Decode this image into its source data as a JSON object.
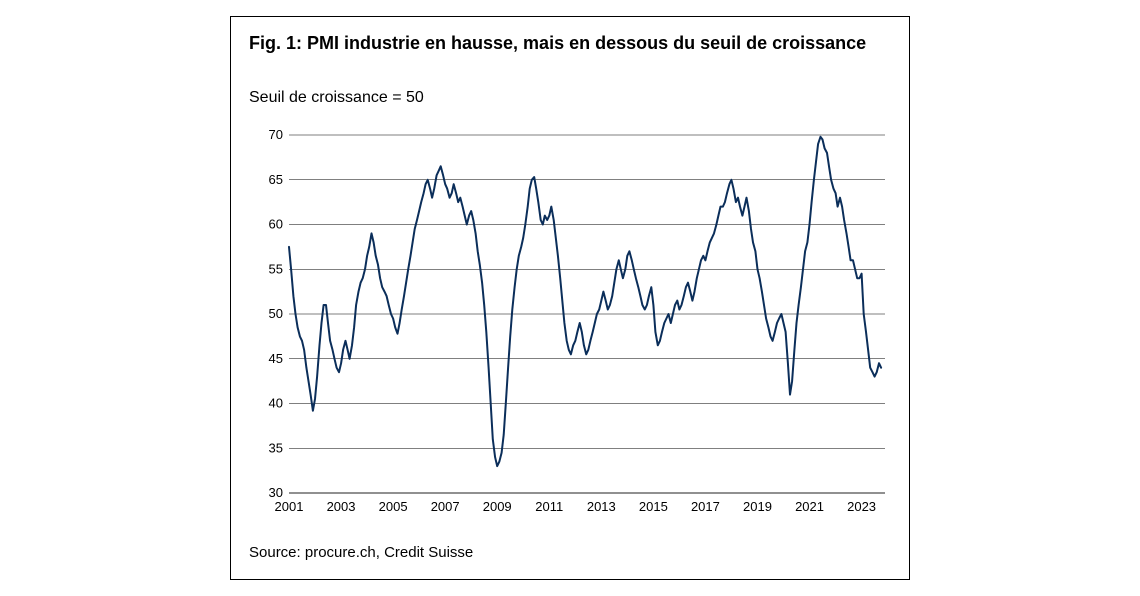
{
  "figure": {
    "title": "Fig. 1: PMI industrie en hausse, mais en dessous du seuil de croissance",
    "subtitle": "Seuil de croissance = 50",
    "source": "Source: procure.ch, Credit Suisse",
    "border_color": "#000000",
    "background": "#ffffff"
  },
  "chart": {
    "type": "line",
    "line_color": "#0b2e5a",
    "line_width": 2,
    "grid_color": "#000000",
    "grid_width": 0.6,
    "x": {
      "min": 2001,
      "max": 2023.9,
      "ticks": [
        2001,
        2003,
        2005,
        2007,
        2009,
        2011,
        2013,
        2015,
        2017,
        2019,
        2021,
        2023
      ]
    },
    "y": {
      "min": 30,
      "max": 70,
      "ticks": [
        30,
        35,
        40,
        45,
        50,
        55,
        60,
        65,
        70
      ]
    },
    "tick_font_size": 13,
    "series": {
      "name": "PMI industrie",
      "points": [
        [
          2001.0,
          57.5
        ],
        [
          2001.08,
          55.0
        ],
        [
          2001.17,
          52.0
        ],
        [
          2001.25,
          50.0
        ],
        [
          2001.33,
          48.5
        ],
        [
          2001.42,
          47.5
        ],
        [
          2001.5,
          47.0
        ],
        [
          2001.58,
          46.0
        ],
        [
          2001.67,
          44.0
        ],
        [
          2001.75,
          42.5
        ],
        [
          2001.83,
          41.0
        ],
        [
          2001.92,
          39.2
        ],
        [
          2002.0,
          40.5
        ],
        [
          2002.08,
          43.0
        ],
        [
          2002.17,
          46.5
        ],
        [
          2002.25,
          49.0
        ],
        [
          2002.33,
          51.0
        ],
        [
          2002.42,
          51.0
        ],
        [
          2002.5,
          49.0
        ],
        [
          2002.58,
          47.0
        ],
        [
          2002.67,
          46.0
        ],
        [
          2002.75,
          45.0
        ],
        [
          2002.83,
          44.0
        ],
        [
          2002.92,
          43.5
        ],
        [
          2003.0,
          44.5
        ],
        [
          2003.08,
          46.0
        ],
        [
          2003.17,
          47.0
        ],
        [
          2003.25,
          46.0
        ],
        [
          2003.33,
          45.0
        ],
        [
          2003.42,
          46.5
        ],
        [
          2003.5,
          48.5
        ],
        [
          2003.58,
          51.0
        ],
        [
          2003.67,
          52.5
        ],
        [
          2003.75,
          53.5
        ],
        [
          2003.83,
          54.0
        ],
        [
          2003.92,
          55.0
        ],
        [
          2004.0,
          56.5
        ],
        [
          2004.08,
          57.5
        ],
        [
          2004.17,
          59.0
        ],
        [
          2004.25,
          58.0
        ],
        [
          2004.33,
          56.5
        ],
        [
          2004.42,
          55.5
        ],
        [
          2004.5,
          54.0
        ],
        [
          2004.58,
          53.0
        ],
        [
          2004.67,
          52.5
        ],
        [
          2004.75,
          52.0
        ],
        [
          2004.83,
          51.0
        ],
        [
          2004.92,
          50.0
        ],
        [
          2005.0,
          49.5
        ],
        [
          2005.08,
          48.5
        ],
        [
          2005.17,
          47.8
        ],
        [
          2005.25,
          49.0
        ],
        [
          2005.33,
          50.5
        ],
        [
          2005.42,
          52.0
        ],
        [
          2005.5,
          53.5
        ],
        [
          2005.58,
          55.0
        ],
        [
          2005.67,
          56.5
        ],
        [
          2005.75,
          58.0
        ],
        [
          2005.83,
          59.5
        ],
        [
          2005.92,
          60.5
        ],
        [
          2006.0,
          61.5
        ],
        [
          2006.08,
          62.5
        ],
        [
          2006.17,
          63.5
        ],
        [
          2006.25,
          64.5
        ],
        [
          2006.33,
          65.0
        ],
        [
          2006.42,
          64.0
        ],
        [
          2006.5,
          63.0
        ],
        [
          2006.58,
          64.0
        ],
        [
          2006.67,
          65.5
        ],
        [
          2006.75,
          66.0
        ],
        [
          2006.83,
          66.5
        ],
        [
          2006.92,
          65.5
        ],
        [
          2007.0,
          64.5
        ],
        [
          2007.08,
          64.0
        ],
        [
          2007.17,
          63.0
        ],
        [
          2007.25,
          63.5
        ],
        [
          2007.33,
          64.5
        ],
        [
          2007.42,
          63.5
        ],
        [
          2007.5,
          62.5
        ],
        [
          2007.58,
          63.0
        ],
        [
          2007.67,
          62.0
        ],
        [
          2007.75,
          61.0
        ],
        [
          2007.83,
          60.0
        ],
        [
          2007.92,
          61.0
        ],
        [
          2008.0,
          61.5
        ],
        [
          2008.08,
          60.5
        ],
        [
          2008.17,
          59.0
        ],
        [
          2008.25,
          57.0
        ],
        [
          2008.33,
          55.5
        ],
        [
          2008.42,
          53.5
        ],
        [
          2008.5,
          51.0
        ],
        [
          2008.58,
          48.0
        ],
        [
          2008.67,
          44.0
        ],
        [
          2008.75,
          40.0
        ],
        [
          2008.83,
          36.0
        ],
        [
          2008.92,
          34.0
        ],
        [
          2009.0,
          33.0
        ],
        [
          2009.08,
          33.5
        ],
        [
          2009.17,
          34.5
        ],
        [
          2009.25,
          36.5
        ],
        [
          2009.33,
          40.0
        ],
        [
          2009.42,
          44.0
        ],
        [
          2009.5,
          47.5
        ],
        [
          2009.58,
          50.5
        ],
        [
          2009.67,
          53.0
        ],
        [
          2009.75,
          55.0
        ],
        [
          2009.83,
          56.5
        ],
        [
          2009.92,
          57.5
        ],
        [
          2010.0,
          58.5
        ],
        [
          2010.08,
          60.0
        ],
        [
          2010.17,
          62.0
        ],
        [
          2010.25,
          64.0
        ],
        [
          2010.33,
          65.0
        ],
        [
          2010.42,
          65.3
        ],
        [
          2010.5,
          64.0
        ],
        [
          2010.58,
          62.5
        ],
        [
          2010.67,
          60.5
        ],
        [
          2010.75,
          60.0
        ],
        [
          2010.83,
          61.0
        ],
        [
          2010.92,
          60.5
        ],
        [
          2011.0,
          61.0
        ],
        [
          2011.08,
          62.0
        ],
        [
          2011.17,
          60.5
        ],
        [
          2011.25,
          58.5
        ],
        [
          2011.33,
          56.5
        ],
        [
          2011.42,
          54.0
        ],
        [
          2011.5,
          51.5
        ],
        [
          2011.58,
          49.0
        ],
        [
          2011.67,
          47.0
        ],
        [
          2011.75,
          46.0
        ],
        [
          2011.83,
          45.5
        ],
        [
          2011.92,
          46.5
        ],
        [
          2012.0,
          47.0
        ],
        [
          2012.08,
          48.0
        ],
        [
          2012.17,
          49.0
        ],
        [
          2012.25,
          48.0
        ],
        [
          2012.33,
          46.5
        ],
        [
          2012.42,
          45.5
        ],
        [
          2012.5,
          46.0
        ],
        [
          2012.58,
          47.0
        ],
        [
          2012.67,
          48.0
        ],
        [
          2012.75,
          49.0
        ],
        [
          2012.83,
          50.0
        ],
        [
          2012.92,
          50.5
        ],
        [
          2013.0,
          51.5
        ],
        [
          2013.08,
          52.5
        ],
        [
          2013.17,
          51.5
        ],
        [
          2013.25,
          50.5
        ],
        [
          2013.33,
          51.0
        ],
        [
          2013.42,
          52.0
        ],
        [
          2013.5,
          53.5
        ],
        [
          2013.58,
          55.0
        ],
        [
          2013.67,
          56.0
        ],
        [
          2013.75,
          55.0
        ],
        [
          2013.83,
          54.0
        ],
        [
          2013.92,
          55.0
        ],
        [
          2014.0,
          56.5
        ],
        [
          2014.08,
          57.0
        ],
        [
          2014.17,
          56.0
        ],
        [
          2014.25,
          55.0
        ],
        [
          2014.33,
          54.0
        ],
        [
          2014.42,
          53.0
        ],
        [
          2014.5,
          52.0
        ],
        [
          2014.58,
          51.0
        ],
        [
          2014.67,
          50.5
        ],
        [
          2014.75,
          51.0
        ],
        [
          2014.83,
          52.0
        ],
        [
          2014.92,
          53.0
        ],
        [
          2015.0,
          51.0
        ],
        [
          2015.08,
          48.0
        ],
        [
          2015.17,
          46.5
        ],
        [
          2015.25,
          47.0
        ],
        [
          2015.33,
          48.0
        ],
        [
          2015.42,
          49.0
        ],
        [
          2015.5,
          49.5
        ],
        [
          2015.58,
          50.0
        ],
        [
          2015.67,
          49.0
        ],
        [
          2015.75,
          50.0
        ],
        [
          2015.83,
          51.0
        ],
        [
          2015.92,
          51.5
        ],
        [
          2016.0,
          50.5
        ],
        [
          2016.08,
          51.0
        ],
        [
          2016.17,
          52.0
        ],
        [
          2016.25,
          53.0
        ],
        [
          2016.33,
          53.5
        ],
        [
          2016.42,
          52.5
        ],
        [
          2016.5,
          51.5
        ],
        [
          2016.58,
          52.5
        ],
        [
          2016.67,
          54.0
        ],
        [
          2016.75,
          55.0
        ],
        [
          2016.83,
          56.0
        ],
        [
          2016.92,
          56.5
        ],
        [
          2017.0,
          56.0
        ],
        [
          2017.08,
          57.0
        ],
        [
          2017.17,
          58.0
        ],
        [
          2017.25,
          58.5
        ],
        [
          2017.33,
          59.0
        ],
        [
          2017.42,
          60.0
        ],
        [
          2017.5,
          61.0
        ],
        [
          2017.58,
          62.0
        ],
        [
          2017.67,
          62.0
        ],
        [
          2017.75,
          62.5
        ],
        [
          2017.83,
          63.5
        ],
        [
          2017.92,
          64.5
        ],
        [
          2018.0,
          65.0
        ],
        [
          2018.08,
          64.0
        ],
        [
          2018.17,
          62.5
        ],
        [
          2018.25,
          63.0
        ],
        [
          2018.33,
          62.0
        ],
        [
          2018.42,
          61.0
        ],
        [
          2018.5,
          62.0
        ],
        [
          2018.58,
          63.0
        ],
        [
          2018.67,
          61.5
        ],
        [
          2018.75,
          59.5
        ],
        [
          2018.83,
          58.0
        ],
        [
          2018.92,
          57.0
        ],
        [
          2019.0,
          55.0
        ],
        [
          2019.08,
          54.0
        ],
        [
          2019.17,
          52.5
        ],
        [
          2019.25,
          51.0
        ],
        [
          2019.33,
          49.5
        ],
        [
          2019.42,
          48.5
        ],
        [
          2019.5,
          47.5
        ],
        [
          2019.58,
          47.0
        ],
        [
          2019.67,
          48.0
        ],
        [
          2019.75,
          49.0
        ],
        [
          2019.83,
          49.5
        ],
        [
          2019.92,
          50.0
        ],
        [
          2020.0,
          49.0
        ],
        [
          2020.08,
          48.0
        ],
        [
          2020.17,
          44.5
        ],
        [
          2020.25,
          41.0
        ],
        [
          2020.33,
          42.5
        ],
        [
          2020.42,
          46.0
        ],
        [
          2020.5,
          49.0
        ],
        [
          2020.58,
          51.0
        ],
        [
          2020.67,
          53.0
        ],
        [
          2020.75,
          55.0
        ],
        [
          2020.83,
          57.0
        ],
        [
          2020.92,
          58.0
        ],
        [
          2021.0,
          60.0
        ],
        [
          2021.08,
          62.5
        ],
        [
          2021.17,
          65.0
        ],
        [
          2021.25,
          67.0
        ],
        [
          2021.33,
          69.0
        ],
        [
          2021.42,
          69.8
        ],
        [
          2021.5,
          69.5
        ],
        [
          2021.58,
          68.5
        ],
        [
          2021.67,
          68.0
        ],
        [
          2021.75,
          66.5
        ],
        [
          2021.83,
          65.0
        ],
        [
          2021.92,
          64.0
        ],
        [
          2022.0,
          63.5
        ],
        [
          2022.08,
          62.0
        ],
        [
          2022.17,
          63.0
        ],
        [
          2022.25,
          62.0
        ],
        [
          2022.33,
          60.5
        ],
        [
          2022.42,
          59.0
        ],
        [
          2022.5,
          57.5
        ],
        [
          2022.58,
          56.0
        ],
        [
          2022.67,
          56.0
        ],
        [
          2022.75,
          55.0
        ],
        [
          2022.83,
          54.0
        ],
        [
          2022.92,
          54.0
        ],
        [
          2023.0,
          54.5
        ],
        [
          2023.08,
          50.0
        ],
        [
          2023.17,
          48.0
        ],
        [
          2023.25,
          46.0
        ],
        [
          2023.33,
          44.0
        ],
        [
          2023.42,
          43.5
        ],
        [
          2023.5,
          43.0
        ],
        [
          2023.58,
          43.5
        ],
        [
          2023.67,
          44.5
        ],
        [
          2023.75,
          44.0
        ]
      ]
    }
  }
}
